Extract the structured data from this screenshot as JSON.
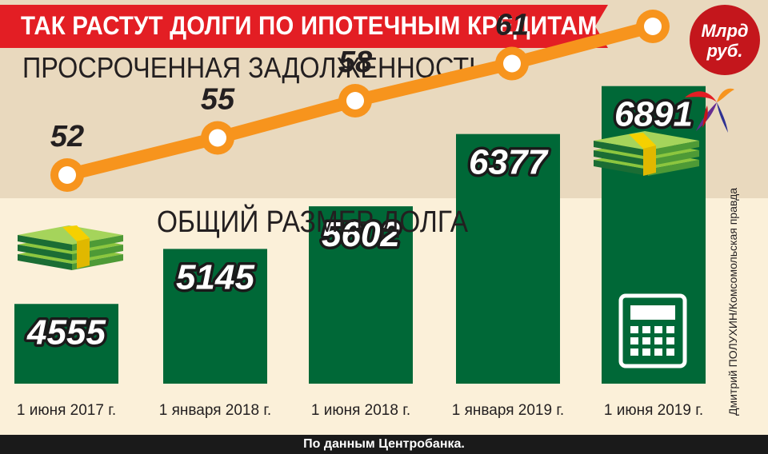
{
  "header": {
    "title": "ТАК РАСТУТ ДОЛГИ ПО ИПОТЕЧНЫМ КРЕДИТАМ",
    "unit_badge": "Млрд\nруб."
  },
  "credit": "Дмитрий ПОЛУХИН/Комсомольская правда",
  "footer": {
    "source": "По данным Центробанка."
  },
  "colors": {
    "title_banner": "#e31e24",
    "unit_badge": "#c4161c",
    "line": "#f7941d",
    "bars": "#006837",
    "top_band": "#e9d9be",
    "bottom_band": "#fbf0d9",
    "footer": "#1a1a1a",
    "money": "#8cc63f",
    "money_band": "#f5d000"
  },
  "icons": [
    "money-stack-icon",
    "calculator-icon",
    "bird-logo-icon"
  ],
  "chart_data": [
    {
      "type": "line",
      "title": "ПРОСРОЧЕННАЯ ЗАДОЛЖЕННОСТЬ",
      "categories": [
        "1 июня 2017 г.",
        "1 января 2018 г.",
        "1 июня 2018 г.",
        "1 января 2019 г.",
        "1 июня 2019 г."
      ],
      "values": [
        52,
        55,
        58,
        61,
        64
      ],
      "ylim": [
        50,
        66
      ],
      "grid": false,
      "legend": "none"
    },
    {
      "type": "bar",
      "title": "ОБЩИЙ РАЗМЕР ДОЛГА",
      "categories": [
        "1 июня 2017 г.",
        "1 января 2018 г.",
        "1 июня 2018 г.",
        "1 января 2019 г.",
        "1 июня 2019 г."
      ],
      "values": [
        4555,
        5145,
        5602,
        6377,
        6891
      ],
      "ylim": [
        3700,
        7000
      ],
      "grid": false,
      "legend": "none"
    }
  ]
}
